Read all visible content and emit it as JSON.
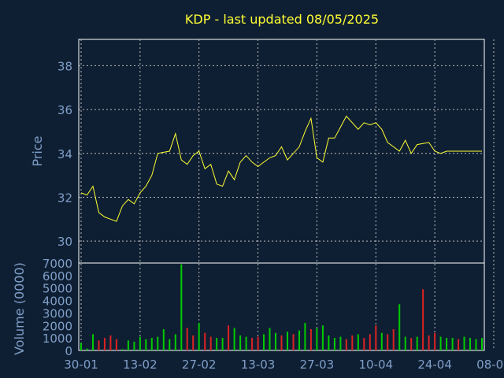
{
  "chart_data": [
    {
      "type": "line",
      "title": "KDP - last updated 08/05/2025",
      "ylabel": "Price",
      "xlabel": "",
      "ylim": [
        29,
        39.2
      ],
      "yticks": [
        "30",
        "32",
        "34",
        "36",
        "38"
      ],
      "grid": true,
      "line_color": "#ffff33",
      "x": [
        "2025-01-30",
        "2025-01-31",
        "2025-02-03",
        "2025-02-04",
        "2025-02-05",
        "2025-02-06",
        "2025-02-07",
        "2025-02-10",
        "2025-02-11",
        "2025-02-12",
        "2025-02-13",
        "2025-02-14",
        "2025-02-18",
        "2025-02-19",
        "2025-02-20",
        "2025-02-21",
        "2025-02-24",
        "2025-02-25",
        "2025-02-26",
        "2025-02-27",
        "2025-02-28",
        "2025-03-03",
        "2025-03-04",
        "2025-03-05",
        "2025-03-06",
        "2025-03-07",
        "2025-03-10",
        "2025-03-11",
        "2025-03-12",
        "2025-03-13",
        "2025-03-14",
        "2025-03-17",
        "2025-03-18",
        "2025-03-19",
        "2025-03-20",
        "2025-03-21",
        "2025-03-24",
        "2025-03-25",
        "2025-03-26",
        "2025-03-27",
        "2025-03-28",
        "2025-03-31",
        "2025-04-01",
        "2025-04-02",
        "2025-04-03",
        "2025-04-04",
        "2025-04-07",
        "2025-04-08",
        "2025-04-09",
        "2025-04-10",
        "2025-04-11",
        "2025-04-14",
        "2025-04-15",
        "2025-04-16",
        "2025-04-17",
        "2025-04-21",
        "2025-04-22",
        "2025-04-23",
        "2025-04-24",
        "2025-04-25",
        "2025-04-28",
        "2025-04-29",
        "2025-04-30",
        "2025-05-01",
        "2025-05-02",
        "2025-05-05",
        "2025-05-06",
        "2025-05-07",
        "2025-05-08"
      ],
      "values": [
        32.2,
        32.1,
        32.5,
        31.3,
        31.1,
        31.0,
        30.9,
        31.6,
        31.9,
        31.7,
        32.2,
        32.5,
        33.0,
        34.0,
        34.05,
        34.1,
        34.9,
        33.7,
        33.5,
        33.9,
        34.1,
        33.3,
        33.5,
        32.6,
        32.5,
        33.2,
        32.8,
        33.6,
        33.9,
        33.6,
        33.4,
        33.6,
        33.8,
        33.9,
        34.3,
        33.7,
        34.0,
        34.3,
        35.0,
        35.6,
        33.8,
        33.6,
        34.7,
        34.7,
        35.2,
        35.7,
        35.4,
        35.1,
        35.4,
        35.3,
        35.4,
        35.1,
        34.5,
        34.3,
        34.1,
        34.6,
        34.0,
        34.4,
        34.45,
        34.5,
        34.1,
        34.0,
        34.1,
        34.1,
        34.1,
        34.1,
        34.1,
        34.1,
        34.1
      ],
      "note": ""
    },
    {
      "type": "bar",
      "ylabel": "Volume (0000)",
      "ylim": [
        0,
        7000
      ],
      "yticks": [
        "0",
        "1000",
        "2000",
        "3000",
        "4000",
        "5000",
        "6000",
        "7000"
      ],
      "up_color": "#00cc00",
      "down_color": "#dd2222",
      "x_tick_labels": [
        "30-01",
        "13-02",
        "27-02",
        "13-03",
        "27-03",
        "10-04",
        "24-04",
        "08-05"
      ],
      "values": [
        600,
        150,
        1300,
        800,
        1000,
        1200,
        900,
        100,
        800,
        700,
        1100,
        900,
        1000,
        1100,
        1700,
        900,
        1300,
        6900,
        1800,
        1200,
        2200,
        1400,
        1100,
        1000,
        1000,
        2000,
        1800,
        1200,
        1100,
        1000,
        1100,
        1300,
        1800,
        1400,
        1200,
        1500,
        1300,
        1600,
        2200,
        1700,
        1800,
        2000,
        1200,
        1000,
        1100,
        900,
        1200,
        1300,
        1000,
        1300,
        2000,
        1400,
        1300,
        1700,
        3700,
        1100,
        1000,
        1100,
        4900,
        1200,
        1400,
        1100,
        1000,
        1000,
        900,
        1100,
        1000,
        900,
        1000
      ],
      "up": [
        true,
        true,
        true,
        false,
        false,
        false,
        false,
        true,
        true,
        true,
        true,
        true,
        true,
        true,
        true,
        true,
        true,
        true,
        false,
        false,
        true,
        false,
        false,
        true,
        true,
        false,
        true,
        true,
        true,
        false,
        false,
        true,
        true,
        true,
        false,
        true,
        false,
        true,
        true,
        false,
        true,
        true,
        true,
        true,
        true,
        false,
        false,
        true,
        false,
        false,
        false,
        true,
        false,
        false,
        true,
        true,
        false,
        true,
        false,
        false,
        false,
        true,
        true,
        true,
        false,
        true,
        true,
        true,
        true
      ]
    }
  ]
}
